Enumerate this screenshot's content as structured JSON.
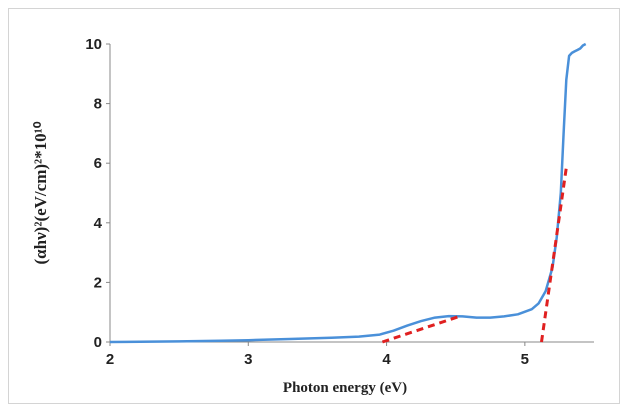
{
  "chart_data": {
    "type": "line",
    "title": "",
    "xlabel": "Photon energy (eV)",
    "ylabel": "(αhν)²(eV/cm)²*10¹⁰",
    "xlim": [
      2,
      5.5
    ],
    "ylim": [
      0,
      10
    ],
    "xticks": [
      2,
      3,
      4,
      5
    ],
    "yticks": [
      0,
      2,
      4,
      6,
      8,
      10
    ],
    "grid": false,
    "legend": "none",
    "series": [
      {
        "color": "#4a90d9",
        "x": [
          2.0,
          2.5,
          2.8,
          3.0,
          3.3,
          3.6,
          3.8,
          3.95,
          4.05,
          4.15,
          4.25,
          4.35,
          4.45,
          4.55,
          4.65,
          4.75,
          4.85,
          4.95,
          5.05,
          5.1,
          5.15,
          5.2,
          5.23,
          5.26,
          5.28,
          5.3,
          5.32,
          5.34,
          5.36,
          5.38,
          5.4,
          5.42,
          5.44
        ],
        "y": [
          0.0,
          0.02,
          0.04,
          0.06,
          0.1,
          0.14,
          0.18,
          0.25,
          0.38,
          0.55,
          0.7,
          0.82,
          0.87,
          0.86,
          0.82,
          0.82,
          0.86,
          0.93,
          1.1,
          1.3,
          1.7,
          2.5,
          3.5,
          5.0,
          7.0,
          8.8,
          9.6,
          9.7,
          9.75,
          9.8,
          9.85,
          9.95,
          10.0
        ]
      },
      {
        "color": "#e02020",
        "style": "dashed",
        "x": [
          3.97,
          4.52
        ],
        "y": [
          0.0,
          0.85
        ]
      },
      {
        "color": "#e02020",
        "style": "dashed",
        "x": [
          5.12,
          5.3
        ],
        "y": [
          0.0,
          5.85
        ]
      }
    ]
  }
}
